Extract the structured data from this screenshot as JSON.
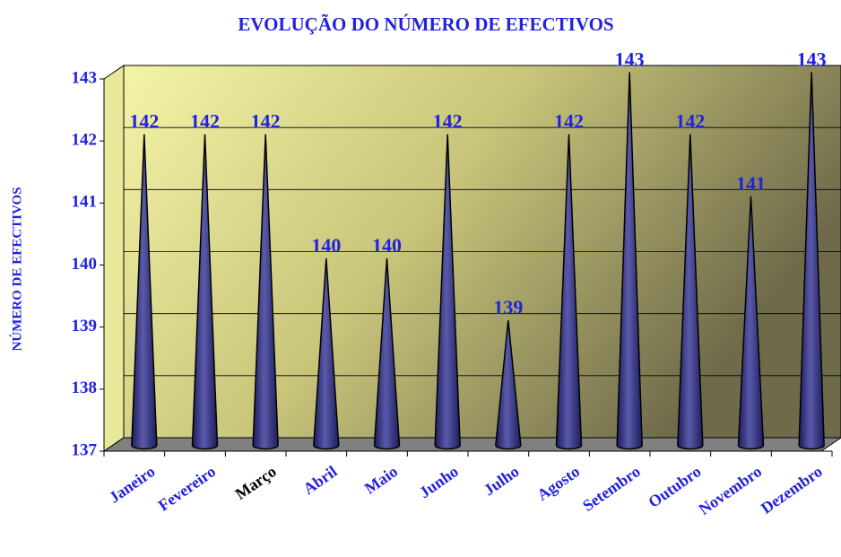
{
  "chart_data": {
    "type": "cone",
    "title": "EVOLUÇÃO DO NÚMERO DE EFECTIVOS",
    "y_label": "NÚMERO DE EFECTIVOS",
    "categories": [
      "Janeiro",
      "Fevereiro",
      "Março",
      "Abril",
      "Maio",
      "Junho",
      "Julho",
      "Agosto",
      "Setembro",
      "Outubro",
      "Novembro",
      "Dezembro"
    ],
    "values": [
      142,
      142,
      142,
      140,
      140,
      142,
      139,
      142,
      143,
      142,
      141,
      143
    ],
    "color": "#3c3c8c",
    "label_color": "#2222dd",
    "category_label_colors": [
      "#2222dd",
      "#2222dd",
      "#000000",
      "#2222dd",
      "#2222dd",
      "#2222dd",
      "#2222dd",
      "#2222dd",
      "#2222dd",
      "#2222dd",
      "#2222dd",
      "#2222dd"
    ],
    "ylim": [
      137,
      143
    ],
    "yticks": [
      137,
      138,
      139,
      140,
      141,
      142,
      143
    ],
    "grid": true
  }
}
